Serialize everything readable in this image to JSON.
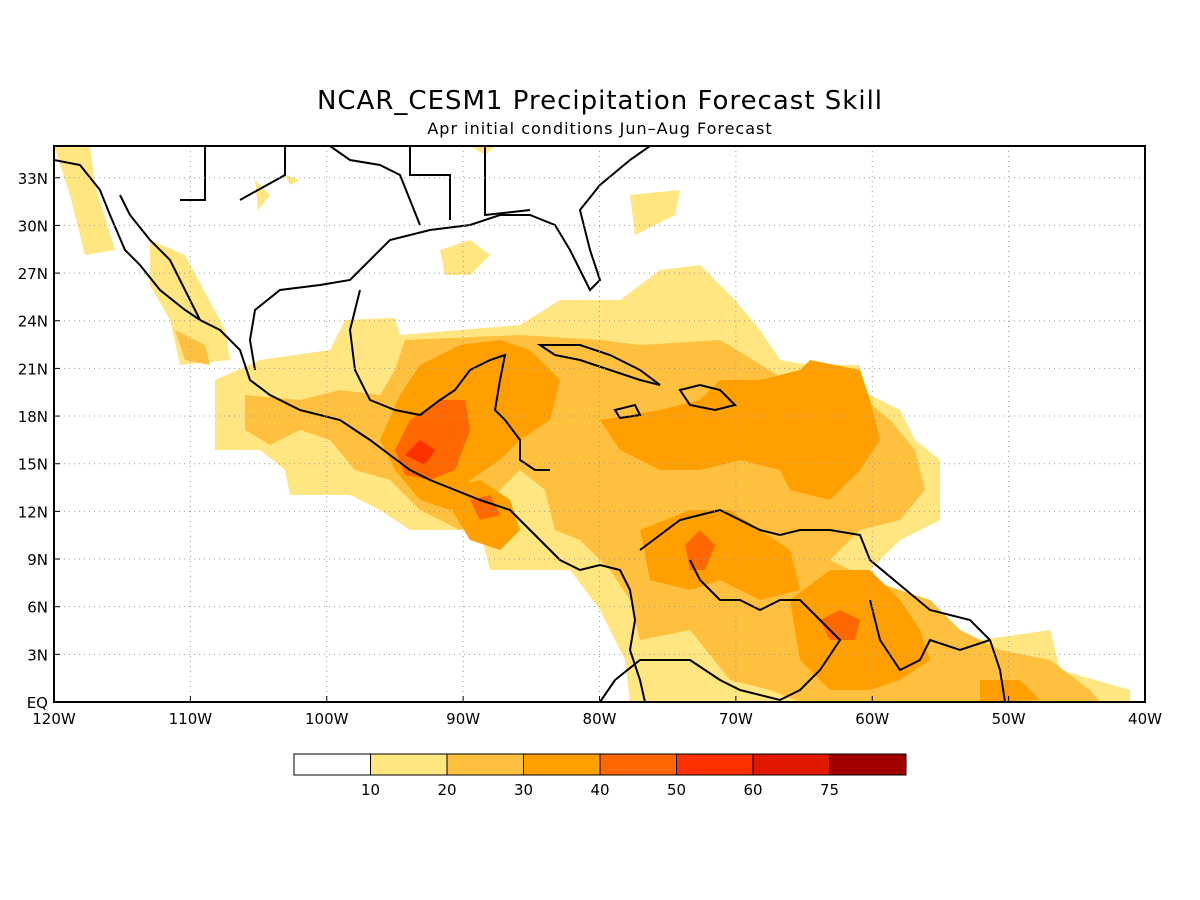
{
  "title": "NCAR_CESM1 Precipitation Forecast Skill",
  "subtitle": "Apr initial conditions  Jun–Aug Forecast",
  "map": {
    "lon_range": [
      -120,
      -40
    ],
    "lat_range": [
      0,
      35
    ],
    "x_ticks": [
      "120W",
      "110W",
      "100W",
      "90W",
      "80W",
      "70W",
      "60W",
      "50W",
      "40W"
    ],
    "y_ticks": [
      "EQ",
      "3N",
      "6N",
      "9N",
      "12N",
      "15N",
      "18N",
      "21N",
      "24N",
      "27N",
      "30N",
      "33N"
    ],
    "grid": "dotted"
  },
  "colorbar": {
    "labels": [
      "10",
      "20",
      "30",
      "40",
      "50",
      "60",
      "75"
    ],
    "colors": [
      "#ffffff",
      "#ffe680",
      "#ffc040",
      "#ffa000",
      "#ff6800",
      "#ff3000",
      "#e01800",
      "#a00000"
    ]
  }
}
